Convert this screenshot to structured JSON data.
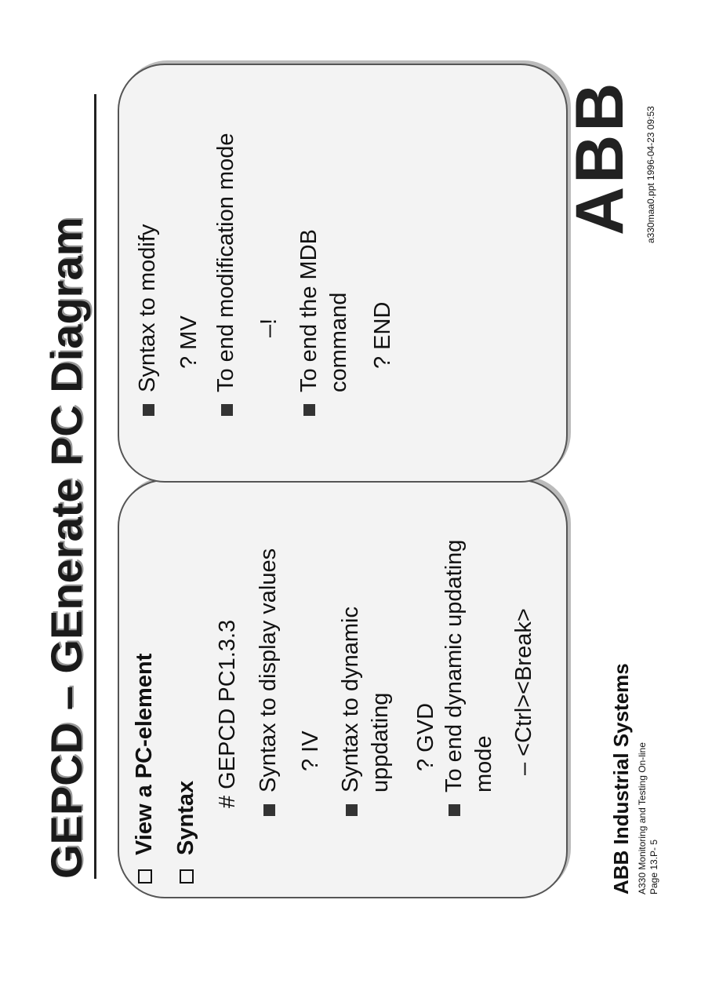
{
  "header": {
    "title": "GEPCD – GEnerate PC Diagram"
  },
  "left_panel": {
    "items": [
      {
        "text": "View a PC-element"
      },
      {
        "text": "Syntax"
      },
      {
        "text": "# GEPCD PC1.3.3"
      },
      {
        "text": "Syntax to display values"
      },
      {
        "text": "? IV"
      },
      {
        "text": "Syntax to dynamic uppdating"
      },
      {
        "text": "? GVD"
      },
      {
        "text": "To end dynamic updating mode"
      },
      {
        "text": "– <Ctrl><Break>"
      }
    ]
  },
  "right_panel": {
    "items": [
      {
        "text": "Syntax to modify"
      },
      {
        "text": "? MV"
      },
      {
        "text": "To end modification mode"
      },
      {
        "text": "–!"
      },
      {
        "text": "To end the MDB command"
      },
      {
        "text": "? END"
      }
    ]
  },
  "footer": {
    "company": "ABB Industrial Systems",
    "course": "A330 Monitoring and Testing On-line",
    "page": "Page 13.P- 5",
    "logo": "ABB",
    "file": "a330maa0.ppt   1996-04-23  09:53"
  }
}
